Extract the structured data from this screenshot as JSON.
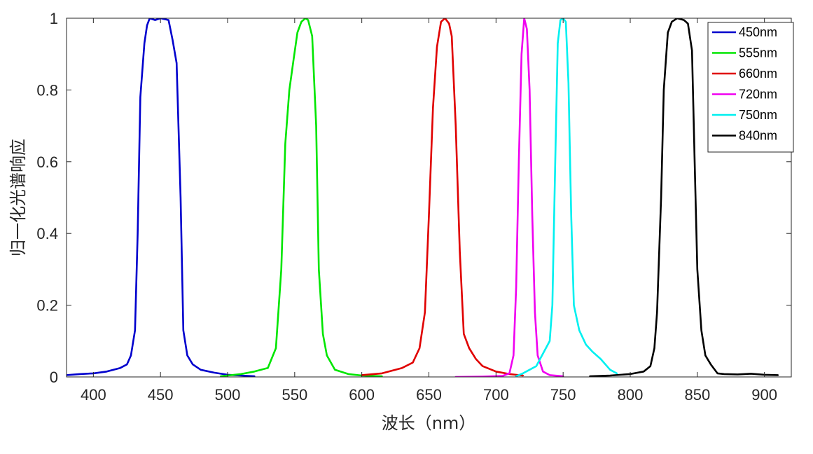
{
  "chart_data": {
    "type": "line",
    "title": "",
    "xlabel": "波长（nm）",
    "ylabel": "归一化光谱响应",
    "xlim": [
      380,
      920
    ],
    "ylim": [
      0,
      1
    ],
    "xticks": [
      "400",
      "450",
      "500",
      "550",
      "600",
      "650",
      "700",
      "750",
      "800",
      "850",
      "900"
    ],
    "yticks": [
      "0",
      "0.2",
      "0.4",
      "0.6",
      "0.8",
      "1"
    ],
    "grid": false,
    "legend_position": "top-right",
    "series": [
      {
        "name": "450nm",
        "color": "#0000CD",
        "x": [
          380,
          390,
          400,
          410,
          420,
          425,
          428,
          431,
          433,
          435,
          438,
          440,
          442,
          446,
          450,
          456,
          459,
          462,
          465,
          467,
          470,
          474,
          480,
          490,
          500,
          510,
          520
        ],
        "y": [
          0.005,
          0.008,
          0.01,
          0.015,
          0.025,
          0.035,
          0.06,
          0.13,
          0.4,
          0.78,
          0.93,
          0.98,
          1.0,
          0.995,
          1.0,
          0.995,
          0.94,
          0.875,
          0.5,
          0.13,
          0.06,
          0.035,
          0.02,
          0.012,
          0.006,
          0.004,
          0.002
        ]
      },
      {
        "name": "555nm",
        "color": "#00E600",
        "x": [
          495,
          510,
          520,
          530,
          536,
          540,
          543,
          546,
          549,
          552,
          555,
          558,
          560,
          563,
          566,
          568,
          571,
          574,
          580,
          590,
          600,
          615
        ],
        "y": [
          0.002,
          0.008,
          0.015,
          0.025,
          0.08,
          0.3,
          0.65,
          0.8,
          0.88,
          0.96,
          0.99,
          1.0,
          0.995,
          0.95,
          0.7,
          0.3,
          0.12,
          0.06,
          0.02,
          0.008,
          0.004,
          0.002
        ]
      },
      {
        "name": "660nm",
        "color": "#E00000",
        "x": [
          600,
          615,
          630,
          638,
          643,
          647,
          650,
          653,
          656,
          659,
          662,
          665,
          667,
          670,
          673,
          676,
          680,
          685,
          690,
          700,
          710,
          720
        ],
        "y": [
          0.005,
          0.01,
          0.025,
          0.04,
          0.08,
          0.18,
          0.45,
          0.75,
          0.92,
          0.99,
          1.0,
          0.985,
          0.95,
          0.7,
          0.35,
          0.12,
          0.08,
          0.05,
          0.03,
          0.015,
          0.008,
          0.004
        ]
      },
      {
        "name": "720nm",
        "color": "#F000F0",
        "x": [
          670,
          690,
          705,
          710,
          713,
          715,
          717,
          719,
          721,
          723,
          725,
          727,
          729,
          731,
          735,
          740,
          750
        ],
        "y": [
          0.0,
          0.001,
          0.003,
          0.01,
          0.06,
          0.25,
          0.6,
          0.9,
          1.0,
          0.97,
          0.8,
          0.45,
          0.18,
          0.06,
          0.015,
          0.005,
          0.002
        ]
      },
      {
        "name": "750nm",
        "color": "#00F0F0",
        "x": [
          715,
          720,
          730,
          740,
          742,
          744,
          746,
          748,
          750,
          752,
          754,
          756,
          758,
          762,
          767,
          772,
          778,
          785,
          790
        ],
        "y": [
          0.002,
          0.01,
          0.03,
          0.1,
          0.2,
          0.58,
          0.93,
          0.995,
          1.0,
          0.99,
          0.82,
          0.45,
          0.2,
          0.13,
          0.09,
          0.07,
          0.05,
          0.02,
          0.01
        ]
      },
      {
        "name": "840nm",
        "color": "#000000",
        "x": [
          770,
          785,
          800,
          810,
          815,
          818,
          820,
          823,
          825,
          828,
          831,
          835,
          840,
          843,
          846,
          848,
          850,
          853,
          856,
          860,
          865,
          870,
          880,
          890,
          900,
          910
        ],
        "y": [
          0.002,
          0.004,
          0.008,
          0.015,
          0.03,
          0.08,
          0.18,
          0.5,
          0.8,
          0.96,
          0.99,
          1.0,
          0.995,
          0.985,
          0.91,
          0.6,
          0.3,
          0.13,
          0.06,
          0.035,
          0.01,
          0.008,
          0.007,
          0.009,
          0.006,
          0.005
        ]
      }
    ]
  }
}
